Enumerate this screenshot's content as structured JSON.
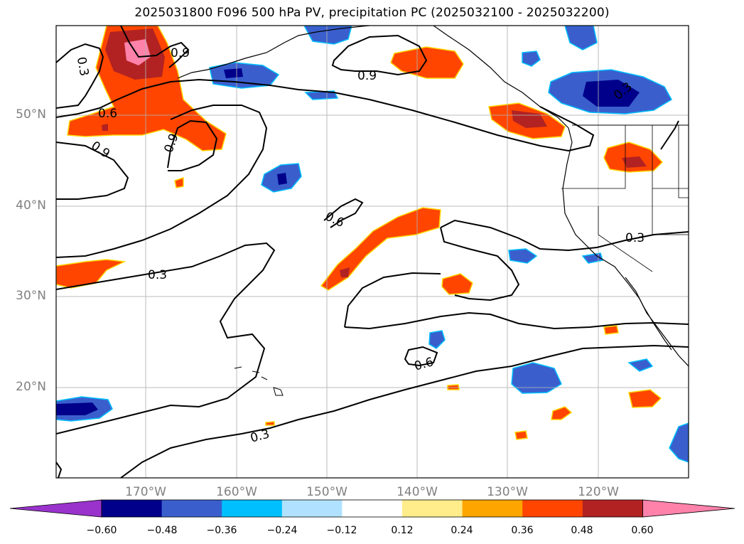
{
  "title": "2025031800 F096 500 hPa PV, precipitation PC (2025032100 - 2025032200)",
  "lat_labels": [
    "50°N",
    "40°N",
    "30°N",
    "20°N"
  ],
  "lon_labels": [
    "170°W",
    "160°W",
    "150°W",
    "140°W",
    "130°W",
    "120°W"
  ],
  "contour_labels": [
    "0.3",
    "0.9",
    "0.6",
    "0.9",
    "0.9",
    "0.9",
    "0.3",
    "0.6",
    "0.3",
    "0.3",
    "0.6",
    "0.3"
  ],
  "colorbar": {
    "colors": [
      "#9933cc",
      "#00008b",
      "#3a5fcd",
      "#00bfff",
      "#b0e2ff",
      "#ffffff",
      "#ffec8b",
      "#ffa500",
      "#ff4500",
      "#b22222",
      "#ff82ab"
    ],
    "ticks": [
      "−0.60",
      "−0.48",
      "−0.36",
      "−0.24",
      "−0.12",
      "0.12",
      "0.24",
      "0.36",
      "0.48",
      "0.60"
    ]
  }
}
